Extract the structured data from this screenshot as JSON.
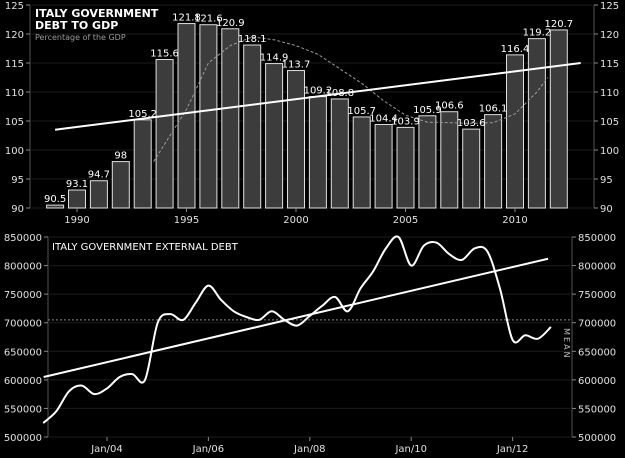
{
  "chart_data": [
    {
      "type": "bar",
      "title": "ITALY GOVERNMENT\nDEBT TO GDP",
      "subtitle": "Percentage of the GDP",
      "x": [
        1989,
        1990,
        1991,
        1992,
        1993,
        1994,
        1995,
        1996,
        1997,
        1998,
        1999,
        2000,
        2001,
        2002,
        2003,
        2004,
        2005,
        2006,
        2007,
        2008,
        2009,
        2010,
        2011,
        2012
      ],
      "values": [
        90.5,
        93.1,
        94.7,
        98,
        105.2,
        115.6,
        121.8,
        121.6,
        120.9,
        118.1,
        114.9,
        113.7,
        109.2,
        108.8,
        105.7,
        104.4,
        103.9,
        105.9,
        106.6,
        103.6,
        106.1,
        116.4,
        119.2,
        120.7
      ],
      "value_labels": [
        "90.5",
        "93.1",
        "94.7",
        "98",
        "105.2",
        "115.6",
        "121.8",
        "121.6",
        "120.9",
        "118.1",
        "114.9",
        "113.7",
        "109.2",
        "108.8",
        "105.7",
        "104.4",
        "103.9",
        "105.9",
        "106.6",
        "103.6",
        "106.1",
        "116.4",
        "119.2",
        "120.7"
      ],
      "x_ticks": [
        "1990",
        "1995",
        "2000",
        "2005",
        "2010"
      ],
      "x_tick_values": [
        1990,
        1995,
        2000,
        2005,
        2010
      ],
      "y_ticks": [
        "90",
        "95",
        "100",
        "105",
        "110",
        "115",
        "120",
        "125"
      ],
      "ylim": [
        90,
        125
      ],
      "trend": {
        "start": 103.5,
        "end": 115
      },
      "moving_average_x": [
        1993.5,
        1995,
        1996,
        1997,
        1998,
        1999,
        2000,
        2001,
        2002,
        2003,
        2004,
        2005,
        2006,
        2007,
        2008,
        2009,
        2010,
        2011,
        2011.5
      ],
      "moving_average": [
        98,
        107,
        115,
        118,
        119.5,
        119,
        118,
        116.5,
        114,
        111.5,
        108.5,
        106,
        104.8,
        104.7,
        104.6,
        104.7,
        106.2,
        110,
        112.5
      ],
      "colors": {
        "bar": "#3c3c3c",
        "bar_edge": "#e0e0e0",
        "trend": "#ffffff",
        "average": "#9a9a9a"
      }
    },
    {
      "type": "line",
      "title": "ITALY GOVERNMENT EXTERNAL DEBT",
      "mean_label": "MEAN",
      "x_ticks": [
        "Jan/04",
        "Jan/06",
        "Jan/08",
        "Jan/10",
        "Jan/12"
      ],
      "x_tick_values": [
        2004,
        2006,
        2008,
        2010,
        2012
      ],
      "y_ticks": [
        "500000",
        "550000",
        "600000",
        "650000",
        "700000",
        "750000",
        "800000",
        "850000"
      ],
      "ylim": [
        500000,
        850000
      ],
      "mean": 705000,
      "trend": {
        "start": 605000,
        "end": 812000
      },
      "series": [
        {
          "x": [
            2002.75,
            2003.0,
            2003.25,
            2003.5,
            2003.75,
            2004.0,
            2004.25,
            2004.5,
            2004.75,
            2005.0,
            2005.25,
            2005.5,
            2005.75,
            2006.0,
            2006.25,
            2006.5,
            2006.75,
            2007.0,
            2007.25,
            2007.5,
            2007.75,
            2008.0,
            2008.25,
            2008.5,
            2008.75,
            2009.0,
            2009.25,
            2009.5,
            2009.75,
            2010.0,
            2010.25,
            2010.5,
            2010.75,
            2011.0,
            2011.25,
            2011.5,
            2011.75,
            2012.0,
            2012.25,
            2012.5,
            2012.75
          ],
          "values": [
            525000,
            545000,
            580000,
            590000,
            575000,
            585000,
            605000,
            610000,
            600000,
            700000,
            715000,
            705000,
            735000,
            765000,
            740000,
            720000,
            710000,
            705000,
            720000,
            705000,
            695000,
            712000,
            730000,
            745000,
            720000,
            760000,
            790000,
            830000,
            850000,
            800000,
            835000,
            840000,
            820000,
            810000,
            830000,
            825000,
            760000,
            670000,
            678000,
            672000,
            692000
          ]
        }
      ],
      "colors": {
        "line": "#ffffff",
        "trend": "#ffffff",
        "mean": "#8a8a8a"
      }
    }
  ]
}
